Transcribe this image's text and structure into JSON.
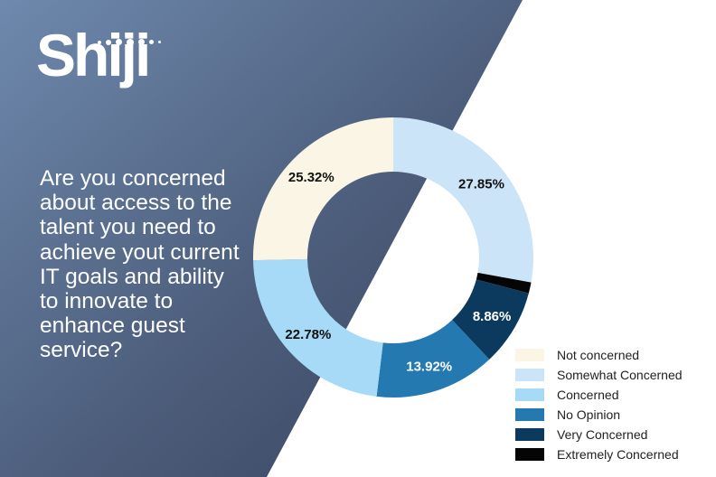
{
  "logo": {
    "text": "Shiji"
  },
  "question": "Are you concerned about access to the talent you need to achieve yout current IT goals and ability to innovate to enhance guest service?",
  "chart_data": {
    "type": "pie",
    "donut": true,
    "title": "Are you concerned about access to the talent you need to achieve yout current IT goals and ability to innovate to enhance guest service?",
    "legend_position": "bottom-right",
    "slices": [
      {
        "name": "Somewhat Concerned",
        "value": 27.85,
        "label": "27.85%",
        "color": "#cce4f7"
      },
      {
        "name": "Extremely Concerned",
        "value": 1.27,
        "label": "",
        "color": "#050505"
      },
      {
        "name": "Very Concerned",
        "value": 8.86,
        "label": "8.86%",
        "color": "#0b3a5e"
      },
      {
        "name": "No Opinion",
        "value": 13.92,
        "label": "13.92%",
        "color": "#2479b0"
      },
      {
        "name": "Concerned",
        "value": 22.78,
        "label": "22.78%",
        "color": "#a6daf6"
      },
      {
        "name": "Not concerned",
        "value": 25.32,
        "label": "25.32%",
        "color": "#fbf5e6"
      }
    ],
    "legend": [
      {
        "name": "Not concerned",
        "color": "#fbf5e6"
      },
      {
        "name": "Somewhat Concerned",
        "color": "#cce4f7"
      },
      {
        "name": "Concerned",
        "color": "#a6daf6"
      },
      {
        "name": "No Opinion",
        "color": "#2479b0"
      },
      {
        "name": "Very Concerned",
        "color": "#0b3a5e"
      },
      {
        "name": "Extremely Concerned",
        "color": "#050505"
      }
    ]
  }
}
